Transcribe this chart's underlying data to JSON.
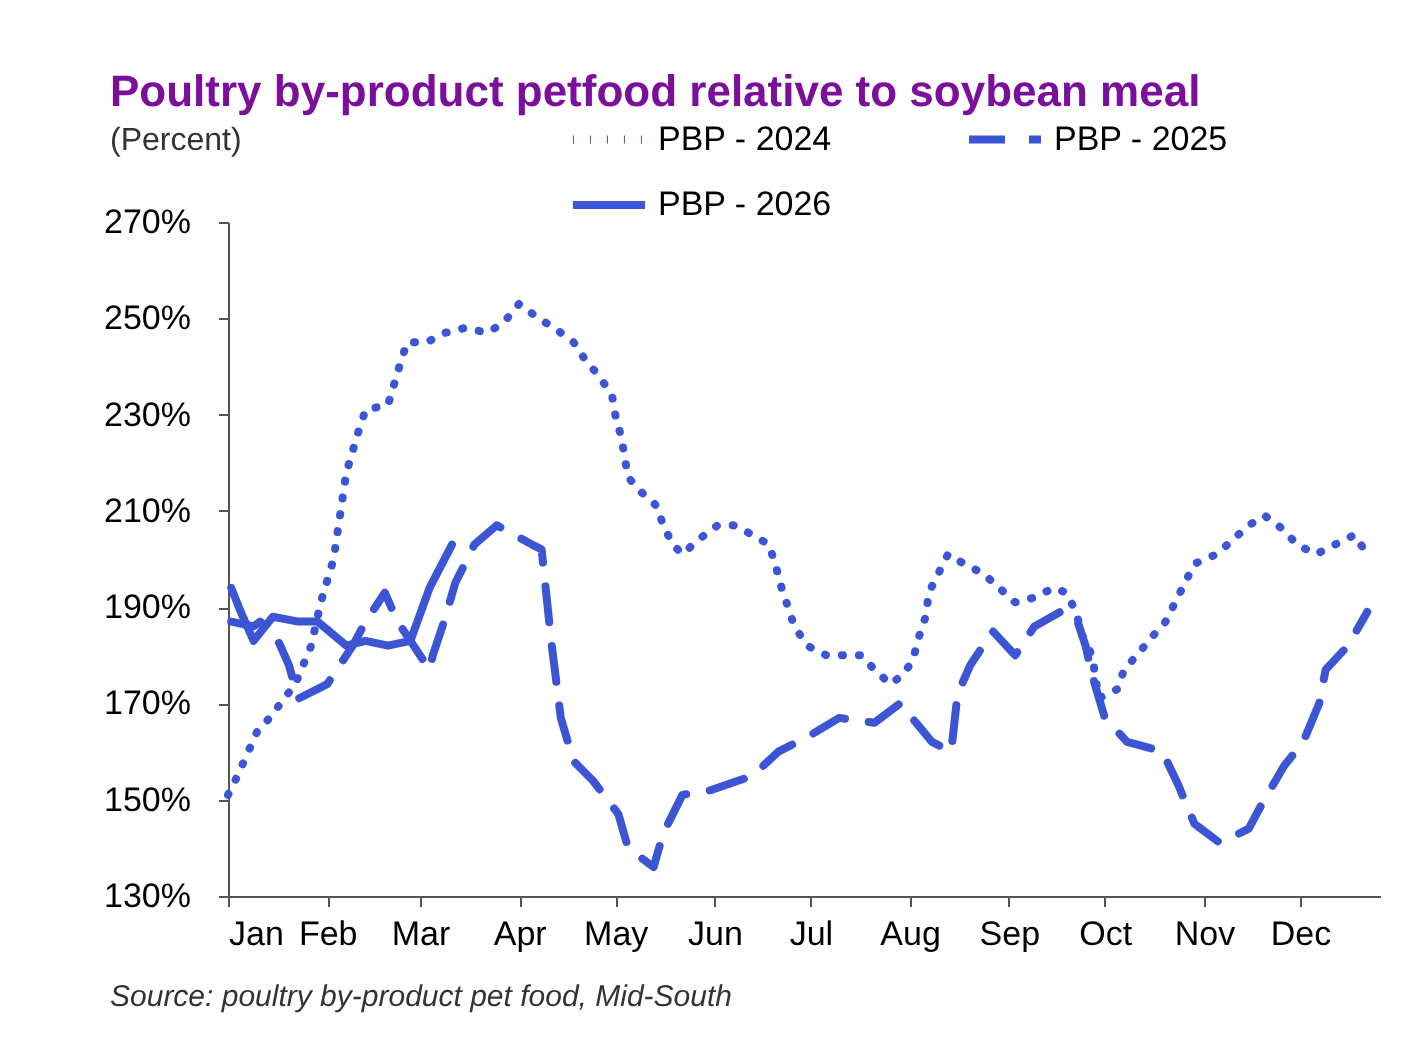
{
  "chart_data": {
    "type": "line",
    "title": "Poultry by-product petfood relative to soybean meal",
    "subtitle": "(Percent)",
    "annotations": [
      "Source: poultry by-product pet food, Mid-South"
    ],
    "xlim": [
      "--01-01",
      "--12-26"
    ],
    "xticks": [
      {
        "value": "--01-01",
        "label": "Jan"
      },
      {
        "value": "--02-01",
        "label": "Feb"
      },
      {
        "value": "--03-01",
        "label": "Mar"
      },
      {
        "value": "--04-01",
        "label": "Apr"
      },
      {
        "value": "--05-01",
        "label": "May"
      },
      {
        "value": "--06-01",
        "label": "Jun"
      },
      {
        "value": "--07-01",
        "label": "Jul"
      },
      {
        "value": "--08-01",
        "label": "Aug"
      },
      {
        "value": "--09-01",
        "label": "Sep"
      },
      {
        "value": "--10-01",
        "label": "Oct"
      },
      {
        "value": "--11-01",
        "label": "Nov"
      },
      {
        "value": "--12-01",
        "label": "Dec"
      }
    ],
    "ylim": [
      130,
      270
    ],
    "yticks": [
      {
        "value": 130,
        "label": "130%"
      },
      {
        "value": 150,
        "label": "150%"
      },
      {
        "value": 170,
        "label": "170%"
      },
      {
        "value": 190,
        "label": "190%"
      },
      {
        "value": 210,
        "label": "210%"
      },
      {
        "value": 230,
        "label": "230%"
      },
      {
        "value": 250,
        "label": "250%"
      },
      {
        "value": 270,
        "label": "270%"
      }
    ],
    "grid": false,
    "legend": "top right",
    "series": [
      {
        "name": "PBP - 2024",
        "color": "#3b55d4",
        "line_style": "dotted",
        "x": [
          "--01-01",
          "--01-04",
          "--01-10",
          "--01-14",
          "--01-22",
          "--01-27",
          "--01-30",
          "--02-03",
          "--02-05",
          "--02-07",
          "--02-11",
          "--02-13",
          "--02-20",
          "--02-24",
          "--02-26",
          "--03-03",
          "--03-09",
          "--03-15",
          "--03-22",
          "--03-27",
          "--04-01",
          "--04-07",
          "--04-12",
          "--04-18",
          "--04-22",
          "--04-26",
          "--04-30",
          "--05-01",
          "--05-03",
          "--05-04",
          "--05-05",
          "--05-09",
          "--05-14",
          "--05-16",
          "--05-19",
          "--05-22",
          "--05-27",
          "--06-02",
          "--06-07",
          "--06-13",
          "--06-18",
          "--06-20",
          "--06-22",
          "--06-24",
          "--06-26",
          "--06-30",
          "--07-06",
          "--07-12",
          "--07-17",
          "--07-21",
          "--07-26",
          "--07-30",
          "--08-02",
          "--08-04",
          "--08-06",
          "--08-07",
          "--08-10",
          "--08-13",
          "--08-18",
          "--08-24",
          "--08-29",
          "--09-03",
          "--09-09",
          "--09-15",
          "--09-19",
          "--09-22",
          "--09-24",
          "--09-27",
          "--09-28",
          "--09-29",
          "--10-05",
          "--10-07",
          "--10-11",
          "--10-16",
          "--10-20",
          "--10-23",
          "--10-26",
          "--10-29",
          "--11-05",
          "--11-10",
          "--11-15",
          "--11-20",
          "--11-26",
          "--11-30",
          "--12-06",
          "--12-12",
          "--12-18",
          "--12-22"
        ],
        "values": [
          151,
          155,
          164,
          167,
          174,
          182,
          191,
          200,
          209,
          218,
          227,
          231,
          232,
          241,
          245,
          245,
          247,
          248,
          247,
          249,
          253,
          250,
          248,
          245,
          241,
          238,
          234,
          230,
          225,
          221,
          217,
          214,
          211,
          207,
          203,
          201,
          204,
          207,
          207,
          205,
          203,
          199,
          194,
          190,
          186,
          182,
          180,
          180,
          180,
          177,
          174,
          176,
          179,
          184,
          188,
          193,
          197,
          201,
          199,
          197,
          194,
          191,
          192,
          194,
          193,
          189,
          184,
          180,
          176,
          171,
          173,
          177,
          180,
          184,
          187,
          191,
          195,
          199,
          201,
          204,
          207,
          209,
          206,
          203,
          201,
          203,
          205,
          201
        ]
      },
      {
        "name": "PBP - 2025",
        "color": "#3b55d4",
        "line_style": "dashed",
        "x": [
          "--01-02",
          "--01-09",
          "--01-11",
          "--01-16",
          "--01-20",
          "--01-23",
          "--02-01",
          "--02-09",
          "--02-13",
          "--02-19",
          "--02-23",
          "--02-28",
          "--03-04",
          "--03-05",
          "--03-09",
          "--03-12",
          "--03-18",
          "--03-25",
          "--04-05",
          "--04-08",
          "--04-11",
          "--04-14",
          "--04-18",
          "--04-24",
          "--05-02",
          "--05-05",
          "--05-13",
          "--05-16",
          "--05-22",
          "--05-31",
          "--06-13",
          "--06-21",
          "--06-30",
          "--07-10",
          "--07-21",
          "--07-29",
          "--08-08",
          "--08-14",
          "--08-16",
          "--08-20",
          "--08-27",
          "--09-03",
          "--09-09",
          "--09-17",
          "--09-22",
          "--09-25",
          "--09-27",
          "--10-01",
          "--10-08",
          "--10-19",
          "--10-24",
          "--10-29",
          "--11-06",
          "--11-15",
          "--11-19",
          "--11-26",
          "--12-02",
          "--12-07",
          "--12-09",
          "--12-16",
          "--12-22"
        ],
        "values": [
          187,
          186,
          187,
          184,
          178,
          171,
          174,
          182,
          187,
          193,
          187,
          182,
          177,
          180,
          188,
          195,
          203,
          207,
          203,
          202,
          183,
          167,
          158,
          154,
          147,
          140,
          136,
          143,
          151,
          152,
          155,
          160,
          163,
          167,
          166,
          170,
          162,
          160,
          172,
          178,
          185,
          180,
          186,
          189,
          188,
          182,
          176,
          167,
          162,
          160,
          153,
          145,
          141,
          144,
          149,
          157,
          162,
          170,
          177,
          182,
          189
        ]
      },
      {
        "name": "PBP - 2026",
        "color": "#3b55d4",
        "line_style": "solid",
        "x": [
          "--01-02",
          "--01-05",
          "--01-09",
          "--01-15",
          "--01-23",
          "--01-29",
          "--02-07",
          "--02-13",
          "--02-20",
          "--02-27",
          "--03-04",
          "--03-11"
        ],
        "values": [
          194,
          189,
          183,
          188,
          187,
          187,
          182,
          183,
          182,
          183,
          194,
          203
        ]
      }
    ]
  }
}
